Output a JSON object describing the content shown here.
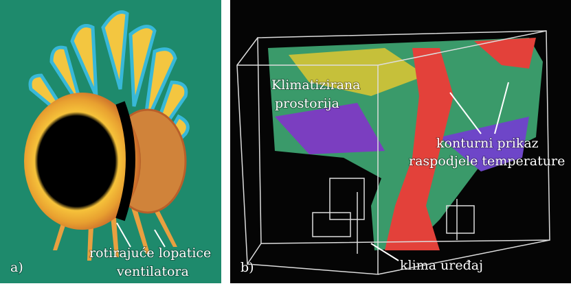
{
  "panels": [
    {
      "label": "a)",
      "annotation": [
        "rotirajuće lopatice",
        "ventilatora"
      ]
    },
    {
      "label": "b)",
      "annotations": {
        "room": [
          "Klimatizirana",
          "prostorija"
        ],
        "contour": [
          "konturni prikaz",
          "raspodjele temperature"
        ],
        "unit": "klima uređaj"
      }
    }
  ]
}
